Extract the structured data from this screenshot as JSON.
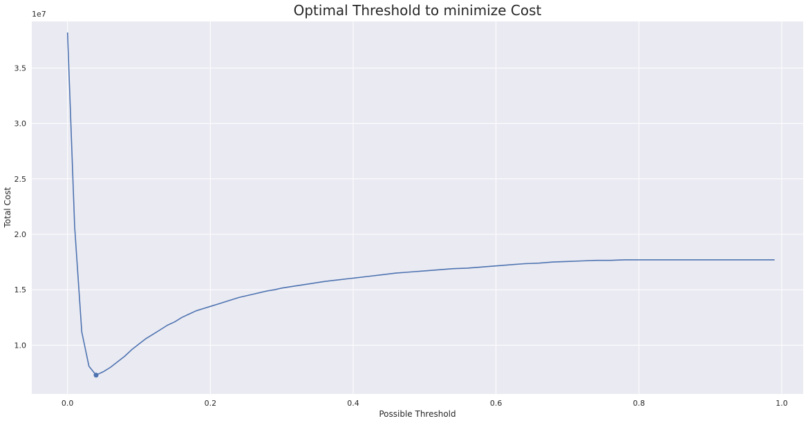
{
  "chart_data": {
    "type": "line",
    "title": "Optimal Threshold to minimize Cost",
    "xlabel": "Possible Threshold",
    "ylabel": "Total Cost",
    "y_offset_label": "1e7",
    "xlim": [
      -0.05,
      1.03
    ],
    "ylim": [
      5.6,
      39.2
    ],
    "y_scale_factor": 10000000,
    "xticks": [
      0.0,
      0.2,
      0.4,
      0.6,
      0.8,
      1.0
    ],
    "xtick_labels": [
      "0.0",
      "0.2",
      "0.4",
      "0.6",
      "0.8",
      "1.0"
    ],
    "yticks": [
      10,
      15,
      20,
      25,
      30,
      35
    ],
    "ytick_labels": [
      "1.0",
      "1.5",
      "2.0",
      "2.5",
      "3.0",
      "3.5"
    ],
    "grid": true,
    "series": [
      {
        "color": "#4c72b0",
        "x": [
          0.0,
          0.01,
          0.02,
          0.03,
          0.04,
          0.05,
          0.06,
          0.07,
          0.08,
          0.09,
          0.1,
          0.11,
          0.12,
          0.13,
          0.14,
          0.15,
          0.16,
          0.17,
          0.18,
          0.19,
          0.2,
          0.21,
          0.22,
          0.23,
          0.24,
          0.25,
          0.26,
          0.27,
          0.28,
          0.29,
          0.3,
          0.32,
          0.34,
          0.36,
          0.38,
          0.4,
          0.42,
          0.44,
          0.46,
          0.48,
          0.5,
          0.52,
          0.54,
          0.56,
          0.58,
          0.6,
          0.62,
          0.64,
          0.66,
          0.68,
          0.7,
          0.72,
          0.74,
          0.76,
          0.78,
          0.8,
          0.82,
          0.84,
          0.86,
          0.88,
          0.9,
          0.92,
          0.94,
          0.96,
          0.98,
          0.99
        ],
        "y": [
          38.2,
          20.7,
          11.2,
          8.1,
          7.3,
          7.6,
          8.0,
          8.5,
          9.0,
          9.6,
          10.1,
          10.6,
          11.0,
          11.4,
          11.8,
          12.1,
          12.5,
          12.8,
          13.1,
          13.3,
          13.5,
          13.7,
          13.9,
          14.1,
          14.3,
          14.45,
          14.6,
          14.75,
          14.9,
          15.0,
          15.15,
          15.35,
          15.55,
          15.75,
          15.9,
          16.05,
          16.2,
          16.35,
          16.5,
          16.6,
          16.7,
          16.8,
          16.9,
          16.95,
          17.05,
          17.15,
          17.25,
          17.35,
          17.4,
          17.5,
          17.55,
          17.6,
          17.65,
          17.65,
          17.7,
          17.7,
          17.7,
          17.7,
          17.7,
          17.7,
          17.7,
          17.7,
          17.7,
          17.7,
          17.7,
          17.7
        ]
      }
    ],
    "marker": {
      "x": 0.04,
      "y": 7.3,
      "color": "#4c72b0"
    }
  }
}
